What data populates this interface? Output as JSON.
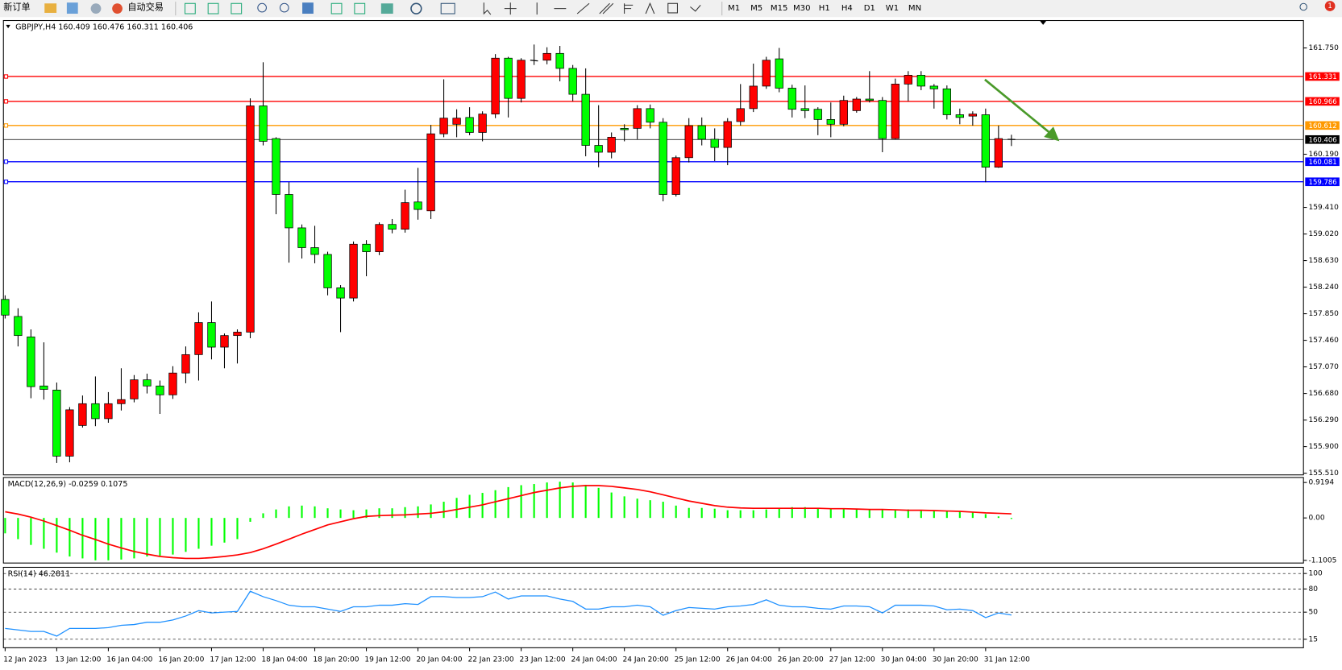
{
  "toolbar": {
    "new_order": "新订单",
    "auto_trading": "自动交易",
    "timeframes": [
      "M1",
      "M5",
      "M15",
      "M30",
      "H1",
      "H4",
      "D1",
      "W1",
      "MN"
    ],
    "notification_count": 1
  },
  "chart_data": [
    {
      "type": "candlestick",
      "title": "GBPJPY,H4  160.409 160.476 160.311 160.406",
      "categories": [
        "12 Jan 2023",
        null,
        null,
        null,
        "13 Jan 12:00",
        null,
        null,
        null,
        "16 Jan 04:00",
        null,
        null,
        null,
        "16 Jan 20:00",
        null,
        null,
        null,
        "17 Jan 12:00",
        null,
        null,
        null,
        "18 Jan 04:00",
        null,
        null,
        null,
        "18 Jan 20:00",
        null,
        null,
        null,
        "19 Jan 12:00",
        null,
        null,
        null,
        "20 Jan 04:00",
        null,
        null,
        null,
        "22 Jan 23:00",
        null,
        null,
        null,
        "23 Jan 12:00",
        null,
        null,
        null,
        "24 Jan 04:00",
        null,
        null,
        null,
        "24 Jan 20:00",
        null,
        null,
        null,
        "25 Jan 12:00",
        null,
        null,
        null,
        "26 Jan 04:00",
        null,
        null,
        null,
        "26 Jan 20:00",
        null,
        null,
        null,
        "27 Jan 12:00",
        null,
        null,
        null,
        "30 Jan 04:00",
        null,
        null,
        null,
        "30 Jan 20:00",
        null,
        null,
        null,
        "31 Jan 12:00",
        null,
        null
      ],
      "open": [
        158.06,
        157.81,
        157.51,
        156.79,
        156.73,
        155.76,
        156.21,
        156.53,
        156.31,
        156.53,
        156.6,
        156.88,
        156.79,
        156.66,
        156.98,
        157.25,
        157.72,
        157.36,
        157.53,
        157.58,
        160.9,
        160.42,
        159.6,
        159.11,
        158.82,
        158.72,
        158.23,
        158.08,
        158.87,
        158.76,
        159.16,
        159.09,
        159.49,
        159.36,
        160.49,
        160.63,
        160.73,
        160.51,
        160.78,
        161.6,
        161.01,
        161.57,
        161.57,
        161.67,
        161.45,
        161.07,
        160.32,
        160.22,
        160.57,
        160.57,
        160.86,
        160.66,
        159.6,
        160.14,
        160.61,
        160.41,
        160.29,
        160.67,
        160.86,
        161.19,
        161.59,
        161.16,
        160.86,
        160.85,
        160.7,
        160.63,
        160.83,
        161.0,
        160.98,
        160.42,
        161.22,
        161.35,
        161.19,
        161.15,
        160.77,
        160.75,
        160.77,
        160.0,
        160.409
      ],
      "high": [
        158.12,
        157.93,
        157.62,
        157.43,
        156.84,
        156.48,
        156.65,
        156.93,
        156.7,
        157.05,
        156.95,
        156.97,
        156.87,
        157.08,
        157.37,
        157.87,
        158.03,
        157.56,
        157.62,
        161.01,
        161.54,
        160.44,
        159.78,
        159.16,
        159.14,
        158.76,
        158.27,
        158.91,
        158.93,
        159.19,
        159.24,
        159.67,
        159.99,
        160.62,
        161.29,
        160.85,
        160.88,
        160.82,
        161.66,
        161.62,
        161.6,
        161.8,
        161.76,
        161.78,
        161.5,
        161.45,
        160.91,
        160.51,
        160.63,
        160.91,
        160.92,
        160.72,
        160.17,
        160.72,
        160.73,
        160.57,
        160.72,
        161.22,
        161.52,
        161.62,
        161.75,
        161.21,
        161.2,
        160.88,
        160.95,
        161.05,
        161.03,
        161.41,
        161.03,
        161.3,
        161.41,
        161.41,
        161.22,
        161.2,
        160.86,
        160.82,
        160.86,
        160.61,
        160.476
      ],
      "low": [
        157.78,
        157.37,
        156.61,
        156.59,
        155.66,
        155.67,
        156.18,
        156.2,
        156.25,
        156.43,
        156.55,
        156.68,
        156.38,
        156.6,
        156.83,
        156.87,
        157.18,
        157.05,
        157.12,
        157.49,
        160.32,
        159.31,
        158.6,
        158.66,
        158.59,
        158.12,
        157.58,
        158.03,
        158.4,
        158.71,
        159.03,
        159.04,
        159.23,
        159.24,
        160.44,
        160.44,
        160.47,
        160.38,
        160.72,
        160.73,
        160.95,
        161.5,
        161.51,
        161.26,
        160.97,
        160.16,
        160.0,
        160.13,
        160.38,
        160.41,
        160.57,
        159.5,
        159.57,
        160.07,
        160.32,
        160.09,
        160.03,
        160.61,
        160.81,
        161.15,
        161.1,
        160.73,
        160.72,
        160.47,
        160.44,
        160.6,
        160.8,
        160.95,
        160.22,
        160.41,
        160.97,
        161.13,
        160.86,
        160.7,
        160.63,
        160.61,
        159.78,
        159.99,
        160.311
      ],
      "close": [
        157.83,
        157.53,
        156.78,
        156.74,
        155.76,
        156.44,
        156.53,
        156.31,
        156.53,
        156.59,
        156.88,
        156.79,
        156.66,
        156.98,
        157.25,
        157.72,
        157.36,
        157.53,
        157.58,
        160.9,
        160.38,
        159.6,
        159.11,
        158.82,
        158.72,
        158.23,
        158.08,
        158.87,
        158.76,
        159.16,
        159.09,
        159.48,
        159.38,
        160.49,
        160.72,
        160.72,
        160.51,
        160.78,
        161.6,
        161.01,
        161.57,
        161.56,
        161.67,
        161.45,
        161.07,
        160.32,
        160.22,
        160.44,
        160.55,
        160.86,
        160.66,
        159.6,
        160.14,
        160.61,
        160.41,
        160.29,
        160.67,
        160.86,
        161.19,
        161.57,
        161.16,
        160.85,
        160.83,
        160.7,
        160.63,
        160.98,
        161.0,
        160.98,
        160.42,
        161.22,
        161.35,
        161.19,
        161.15,
        160.77,
        160.73,
        160.78,
        160.0,
        160.42,
        160.406
      ],
      "up_color": "#ff0000",
      "down_color": "#00ff00",
      "ylim": [
        155.485,
        162.152
      ],
      "yticks": [
        {
          "value": 161.75,
          "label": "161.750"
        },
        {
          "value": 160.19,
          "label": "160.190"
        },
        {
          "value": 159.41,
          "label": "159.410"
        },
        {
          "value": 159.02,
          "label": "159.020"
        },
        {
          "value": 158.63,
          "label": "158.630"
        },
        {
          "value": 158.24,
          "label": "158.240"
        },
        {
          "value": 157.85,
          "label": "157.850"
        },
        {
          "value": 157.46,
          "label": "157.460"
        },
        {
          "value": 157.07,
          "label": "157.070"
        },
        {
          "value": 156.68,
          "label": "156.680"
        },
        {
          "value": 156.29,
          "label": "156.290"
        },
        {
          "value": 155.9,
          "label": "155.900"
        },
        {
          "value": 155.51,
          "label": "155.510"
        }
      ],
      "levels": [
        {
          "value": 161.331,
          "color": "#ff0000"
        },
        {
          "value": 160.966,
          "color": "#ff0000"
        },
        {
          "value": 160.612,
          "color": "#ff9900"
        },
        {
          "value": 160.081,
          "color": "#0000ff"
        },
        {
          "value": 159.786,
          "color": "#0000ff"
        }
      ]
    },
    {
      "type": "combo",
      "title": "MACD(12,26,9) -0.0259 0.1075",
      "ylim": [
        -1.17,
        1.05
      ],
      "yticks": [
        0.9194,
        {
          "value": 0,
          "label": "0.00"
        },
        -1.1005
      ],
      "series": [
        {
          "kind": "bar",
          "color": "#00ff00",
          "values": [
            -0.4,
            -0.55,
            -0.7,
            -0.8,
            -0.9,
            -1.0,
            -1.05,
            -1.1,
            -1.1,
            -1.08,
            -1.05,
            -1.0,
            -0.98,
            -0.95,
            -0.88,
            -0.8,
            -0.72,
            -0.64,
            -0.55,
            -0.1,
            0.12,
            0.22,
            0.3,
            0.32,
            0.3,
            0.25,
            0.22,
            0.2,
            0.22,
            0.25,
            0.25,
            0.28,
            0.3,
            0.35,
            0.42,
            0.52,
            0.6,
            0.65,
            0.72,
            0.8,
            0.85,
            0.88,
            0.92,
            0.94,
            0.92,
            0.86,
            0.78,
            0.66,
            0.56,
            0.5,
            0.46,
            0.42,
            0.32,
            0.26,
            0.26,
            0.24,
            0.2,
            0.2,
            0.2,
            0.22,
            0.26,
            0.28,
            0.28,
            0.26,
            0.24,
            0.24,
            0.22,
            0.22,
            0.22,
            0.22,
            0.22,
            0.2,
            0.2,
            0.18,
            0.16,
            0.14,
            0.1,
            0.04,
            -0.0259
          ]
        },
        {
          "kind": "line",
          "color": "#ff0000",
          "values": [
            0.16,
            0.1,
            0.02,
            -0.08,
            -0.2,
            -0.32,
            -0.45,
            -0.56,
            -0.68,
            -0.78,
            -0.87,
            -0.94,
            -1.0,
            -1.03,
            -1.05,
            -1.05,
            -1.03,
            -1.0,
            -0.96,
            -0.9,
            -0.8,
            -0.68,
            -0.55,
            -0.42,
            -0.3,
            -0.18,
            -0.1,
            -0.02,
            0.04,
            0.06,
            0.07,
            0.08,
            0.1,
            0.12,
            0.16,
            0.22,
            0.28,
            0.34,
            0.42,
            0.5,
            0.58,
            0.66,
            0.72,
            0.78,
            0.82,
            0.84,
            0.84,
            0.82,
            0.78,
            0.74,
            0.68,
            0.6,
            0.52,
            0.44,
            0.38,
            0.32,
            0.28,
            0.26,
            0.25,
            0.25,
            0.25,
            0.25,
            0.25,
            0.25,
            0.24,
            0.24,
            0.23,
            0.22,
            0.22,
            0.21,
            0.2,
            0.2,
            0.19,
            0.18,
            0.17,
            0.15,
            0.13,
            0.12,
            0.1075
          ]
        }
      ]
    },
    {
      "type": "line",
      "title": "RSI(14) 46.2811",
      "ylim": [
        4,
        108
      ],
      "yticks": [
        100,
        80,
        50,
        15
      ],
      "grid": "dashed",
      "color": "#1e90ff",
      "values": [
        29,
        27,
        25,
        25,
        19,
        29,
        29,
        29,
        30,
        33,
        34,
        37,
        37,
        40,
        45,
        52,
        49,
        50,
        51,
        77,
        70,
        65,
        59,
        57,
        57,
        54,
        51,
        57,
        57,
        59,
        59,
        61,
        60,
        70,
        70,
        69,
        69,
        70,
        76,
        67,
        71,
        71,
        71,
        67,
        64,
        54,
        54,
        57,
        57,
        59,
        57,
        46,
        52,
        56,
        55,
        54,
        57,
        58,
        60,
        66,
        59,
        57,
        57,
        55,
        54,
        58,
        58,
        57,
        49,
        59,
        59,
        59,
        58,
        53,
        54,
        52,
        43,
        49,
        46.2811
      ]
    }
  ]
}
